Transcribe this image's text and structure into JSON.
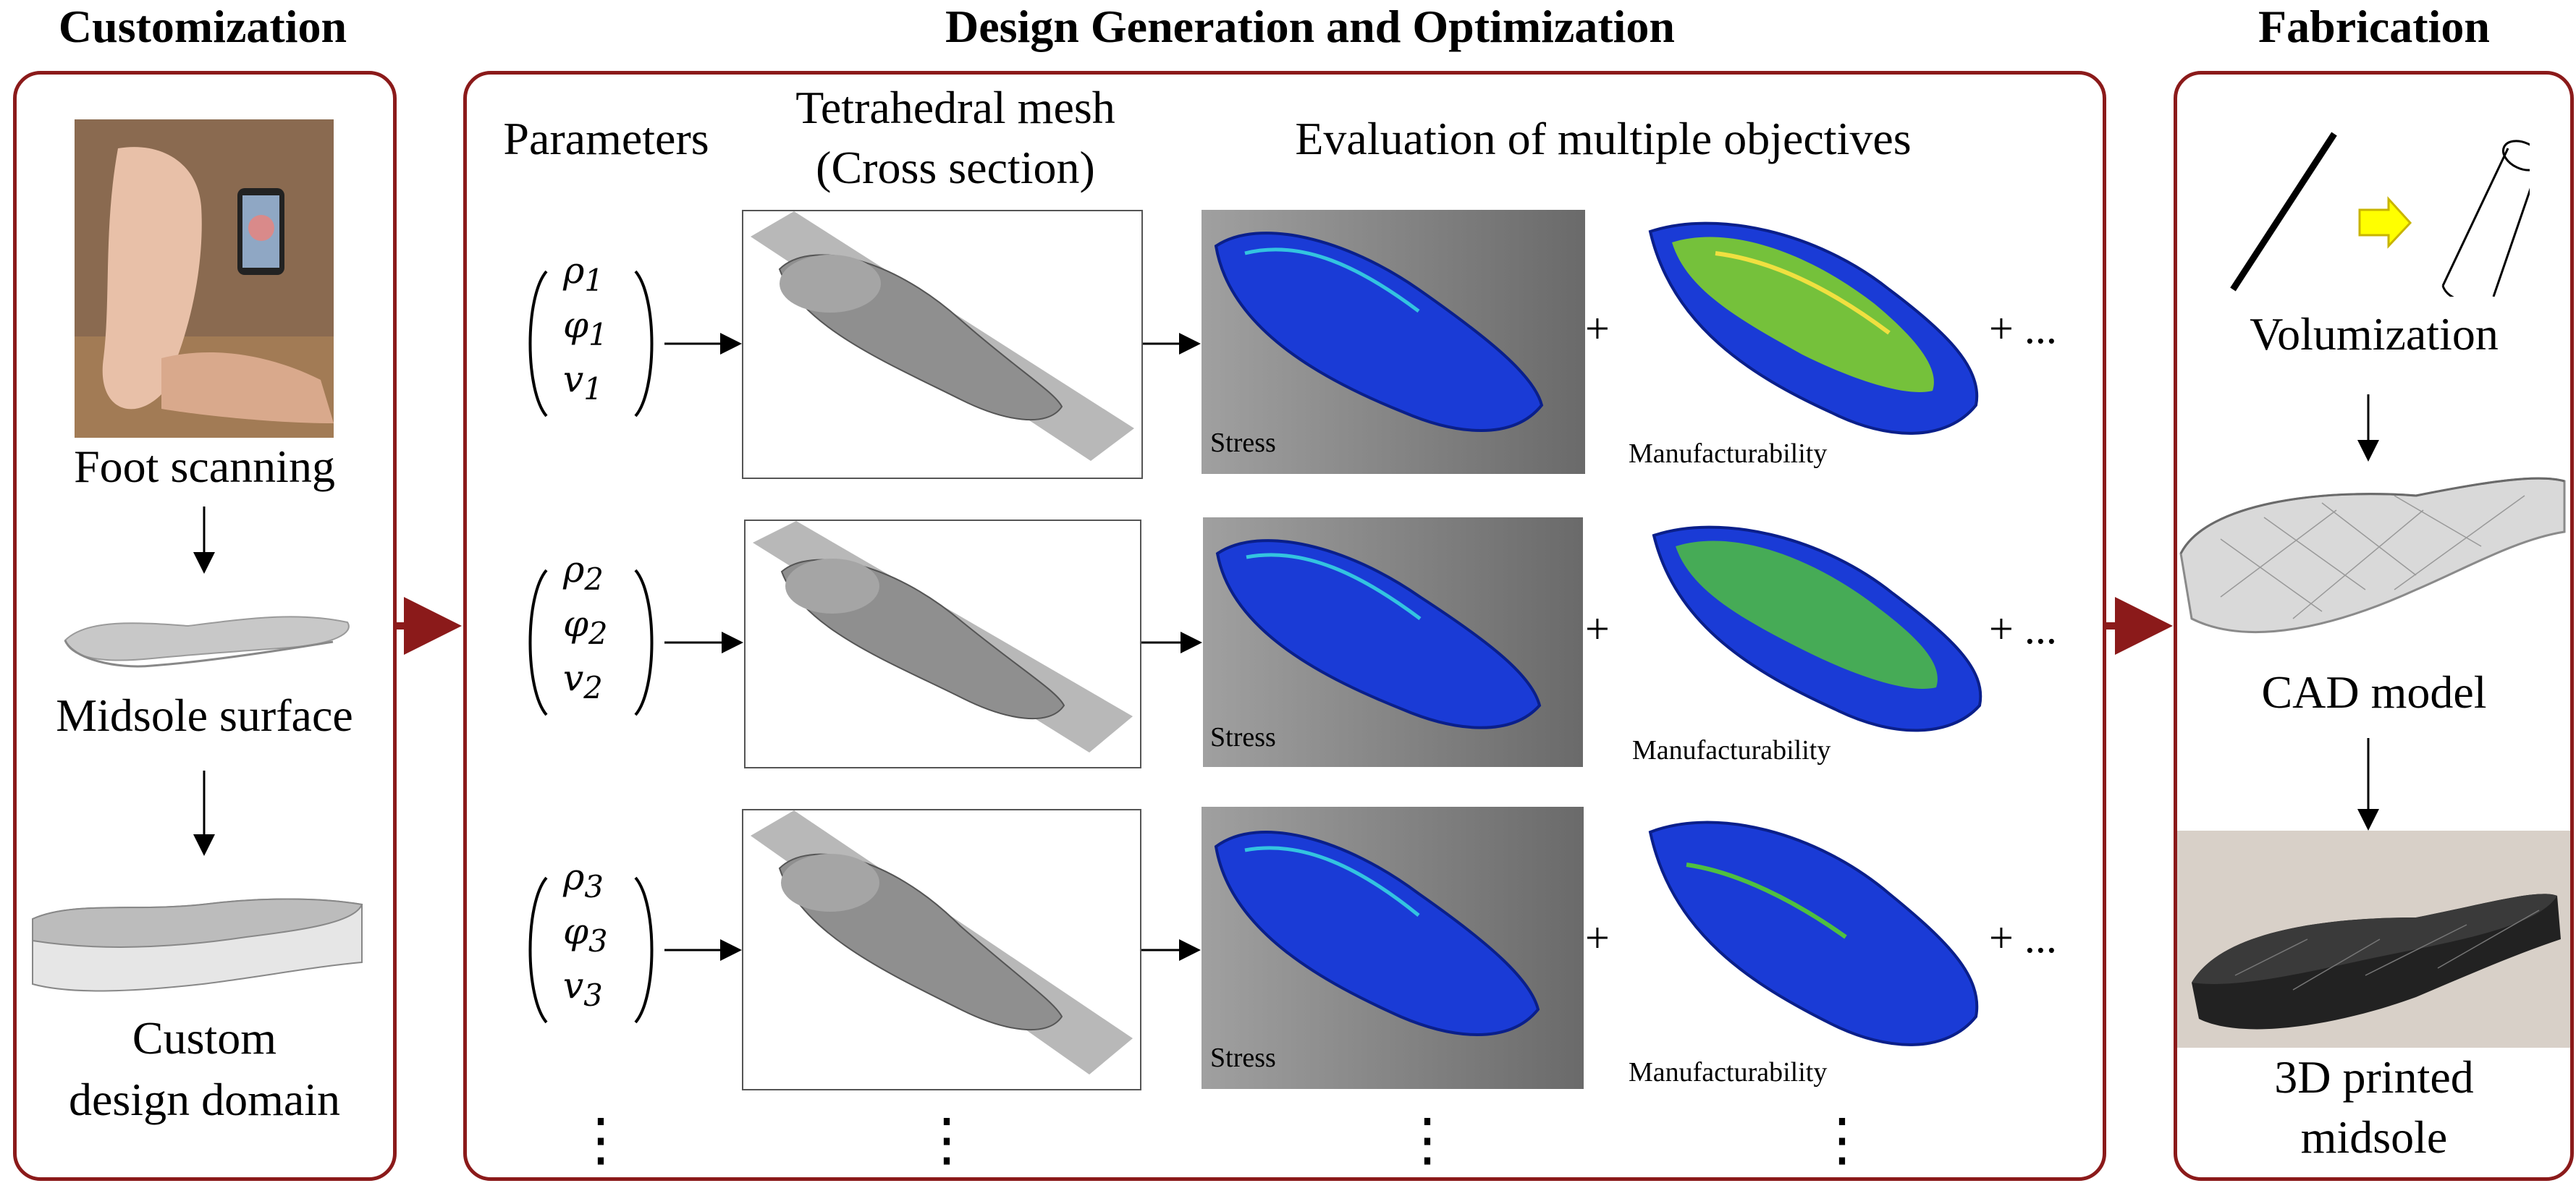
{
  "sections": {
    "customization": "Customization",
    "design": "Design Generation and Optimization",
    "fabrication": "Fabrication"
  },
  "customization": {
    "foot_scanning": "Foot scanning",
    "midsole_surface": "Midsole surface",
    "custom_domain_line1": "Custom",
    "custom_domain_line2": "design domain"
  },
  "design": {
    "parameters_header": "Parameters",
    "mesh_header_line1": "Tetrahedral mesh",
    "mesh_header_line2": "(Cross section)",
    "eval_header": "Evaluation of multiple objectives",
    "rows": [
      {
        "rho": "ρ",
        "phi": "φ",
        "v": "v",
        "index": "1",
        "stress": "Stress",
        "manuf": "Manufacturability",
        "plus1": "+",
        "plus2": "+ ..."
      },
      {
        "rho": "ρ",
        "phi": "φ",
        "v": "v",
        "index": "2",
        "stress": "Stress",
        "manuf": "Manufacturability",
        "plus1": "+",
        "plus2": "+ ..."
      },
      {
        "rho": "ρ",
        "phi": "φ",
        "v": "v",
        "index": "3",
        "stress": "Stress",
        "manuf": "Manufacturability",
        "plus1": "+",
        "plus2": "+ ..."
      }
    ],
    "ellipsis": "⋮"
  },
  "fabrication": {
    "volumization": "Volumization",
    "cad_model": "CAD model",
    "printed_line1": "3D printed",
    "printed_line2": "midsole"
  },
  "colors": {
    "panel_border": "#8b1a1a",
    "arrow": "#8b1a1a",
    "stress_blue": "#1a3bd6",
    "yellow_arrow": "#ffff00"
  }
}
